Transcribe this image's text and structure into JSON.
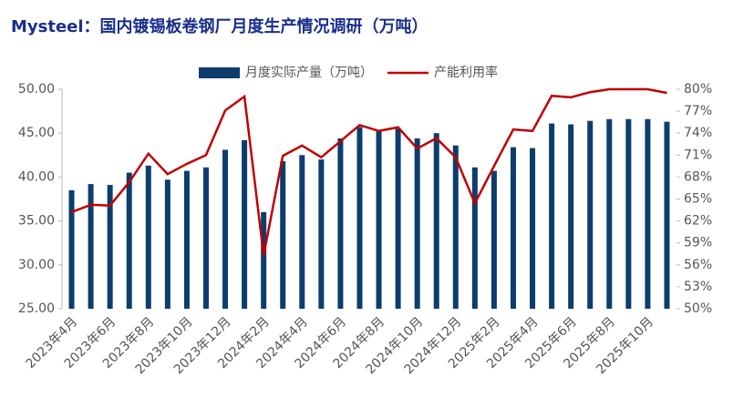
{
  "chart_data": {
    "type": "bar_line",
    "title": "Mysteel：国内镀锡板卷钢厂月度生产情况调研（万吨）",
    "categories": [
      "2023年4月",
      null,
      "2023年6月",
      null,
      "2023年8月",
      null,
      "2023年10月",
      null,
      "2023年12月",
      null,
      "2024年2月",
      null,
      "2024年4月",
      null,
      "2024年6月",
      null,
      "2024年8月",
      null,
      "2024年10月",
      null,
      "2024年12月",
      null,
      "2025年2月",
      null,
      "2025年4月",
      null,
      "2025年6月",
      null,
      "2025年8月",
      null,
      "2025年10月",
      null
    ],
    "series": [
      {
        "name": "月度实际产量（万吨）",
        "type": "bar",
        "color": "#0d3d6e",
        "values": [
          38.5,
          39.2,
          39.1,
          40.5,
          41.3,
          39.7,
          40.7,
          41.1,
          43.1,
          44.2,
          36.0,
          41.8,
          42.5,
          42.0,
          44.4,
          45.7,
          45.2,
          45.5,
          44.4,
          45.0,
          43.6,
          41.1,
          40.7,
          43.4,
          43.3,
          46.1,
          46.0,
          46.4,
          46.6,
          46.6,
          46.6,
          46.3
        ]
      },
      {
        "name": "产能利用率",
        "type": "line",
        "axis": "y2",
        "color": "#c00000",
        "values": [
          63.2,
          64.2,
          64.1,
          67.3,
          71.2,
          68.4,
          69.8,
          71.0,
          77.1,
          79.0,
          57.3,
          70.9,
          72.3,
          70.7,
          72.9,
          75.1,
          74.3,
          74.8,
          71.9,
          73.3,
          70.7,
          64.4,
          69.5,
          74.5,
          74.3,
          79.1,
          78.9,
          79.6,
          80.0,
          80.0,
          80.0,
          79.5
        ]
      }
    ],
    "ylim": [
      25,
      50
    ],
    "yticks": [
      {
        "value": 25,
        "label": "25.00"
      },
      {
        "value": 30,
        "label": "30.00"
      },
      {
        "value": 35,
        "label": "35.00"
      },
      {
        "value": 40,
        "label": "40.00"
      },
      {
        "value": 45,
        "label": "45.00"
      },
      {
        "value": 50,
        "label": "50.00"
      }
    ],
    "y2lim": [
      50,
      80
    ],
    "y2ticks": [
      {
        "value": 50,
        "label": "50%"
      },
      {
        "value": 53,
        "label": "53%"
      },
      {
        "value": 56,
        "label": "56%"
      },
      {
        "value": 59,
        "label": "59%"
      },
      {
        "value": 62,
        "label": "62%"
      },
      {
        "value": 65,
        "label": "65%"
      },
      {
        "value": 68,
        "label": "68%"
      },
      {
        "value": 71,
        "label": "71%"
      },
      {
        "value": 74,
        "label": "74%"
      },
      {
        "value": 77,
        "label": "77%"
      },
      {
        "value": 80,
        "label": "80%"
      }
    ]
  }
}
